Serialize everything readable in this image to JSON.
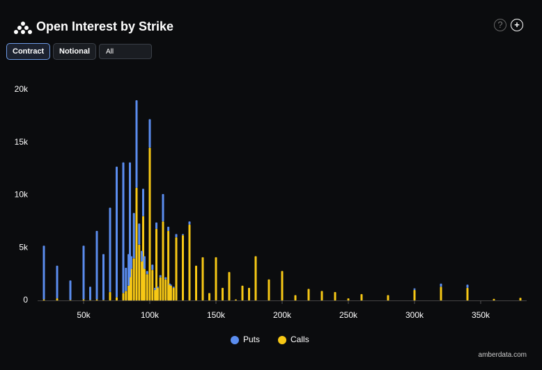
{
  "header": {
    "title": "Open Interest by Strike",
    "help": "?",
    "add": "+"
  },
  "controls": {
    "buttons": [
      "Contract",
      "Notional"
    ],
    "select": "All"
  },
  "footer": "amberdata.com",
  "chart_data": {
    "type": "bar",
    "stacked": true,
    "grid": false,
    "x": [
      20000,
      30000,
      40000,
      50000,
      55000,
      60000,
      65000,
      70000,
      75000,
      80000,
      82000,
      84000,
      85000,
      86000,
      88000,
      90000,
      92000,
      94000,
      95000,
      96000,
      98000,
      100000,
      102000,
      104000,
      105000,
      106000,
      108000,
      110000,
      112000,
      114000,
      115000,
      116000,
      118000,
      120000,
      125000,
      130000,
      135000,
      140000,
      145000,
      150000,
      155000,
      160000,
      165000,
      170000,
      175000,
      180000,
      190000,
      200000,
      210000,
      220000,
      230000,
      240000,
      250000,
      260000,
      280000,
      300000,
      320000,
      340000,
      360000,
      380000
    ],
    "series": [
      {
        "name": "Calls",
        "color": "#f7c815",
        "values": [
          100,
          200,
          50,
          100,
          50,
          100,
          50,
          800,
          300,
          700,
          900,
          1400,
          2200,
          3000,
          4000,
          10700,
          5300,
          3700,
          8000,
          3000,
          2500,
          14500,
          2900,
          1000,
          6800,
          1200,
          2200,
          7500,
          2000,
          6600,
          1500,
          1400,
          1200,
          6000,
          6200,
          7200,
          3300,
          4100,
          700,
          4100,
          1200,
          2700,
          100,
          1400,
          1200,
          4200,
          2000,
          2800,
          500,
          1100,
          900,
          800,
          200,
          600,
          500,
          1000,
          1300,
          1200,
          150,
          250
        ]
      },
      {
        "name": "Puts",
        "color": "#5b8def",
        "values": [
          5100,
          3100,
          1850,
          5100,
          1250,
          6500,
          4350,
          8000,
          12400,
          12400,
          2200,
          3000,
          10900,
          1200,
          4300,
          8300,
          2000,
          1000,
          2600,
          1200,
          300,
          2700,
          500,
          200,
          600,
          100,
          200,
          2600,
          200,
          400,
          100,
          100,
          100,
          300,
          100,
          300,
          0,
          0,
          0,
          0,
          0,
          0,
          0,
          0,
          0,
          0,
          0,
          0,
          0,
          0,
          0,
          0,
          0,
          0,
          0,
          150,
          300,
          300,
          0,
          0
        ]
      }
    ],
    "xlim": [
      15000,
      385000
    ],
    "xticks": [
      {
        "value": 50000,
        "label": "50k"
      },
      {
        "value": 100000,
        "label": "100k"
      },
      {
        "value": 150000,
        "label": "150k"
      },
      {
        "value": 200000,
        "label": "200k"
      },
      {
        "value": 250000,
        "label": "250k"
      },
      {
        "value": 300000,
        "label": "300k"
      },
      {
        "value": 350000,
        "label": "350k"
      }
    ],
    "ylim": [
      0,
      20000
    ],
    "yticks": [
      0,
      {
        "value": 5000,
        "label": "5k"
      },
      {
        "value": 10000,
        "label": "10k"
      },
      {
        "value": 15000,
        "label": "15k"
      },
      {
        "value": 20000,
        "label": "20k"
      }
    ],
    "legend": "bottom"
  }
}
